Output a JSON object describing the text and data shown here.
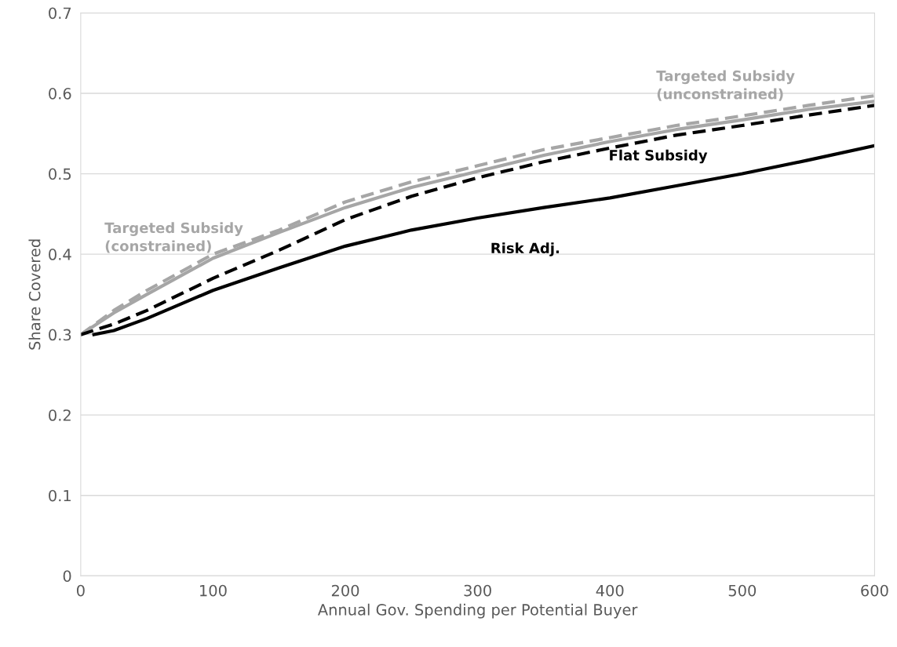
{
  "chart_data": {
    "type": "line",
    "xlabel": "Annual Gov. Spending per Potential Buyer",
    "ylabel": "Share Covered",
    "xlim": [
      0,
      600
    ],
    "xticks": [
      0,
      100,
      200,
      300,
      400,
      500,
      600
    ],
    "ylim": [
      0,
      0.7
    ],
    "yticks": [
      0,
      0.1,
      0.2,
      0.3,
      0.4,
      0.5,
      0.6,
      0.7
    ],
    "grid": "y",
    "legend": false,
    "marker": "none",
    "series": [
      {
        "name": "Targeted Subsidy\n(unconstrained)",
        "color": "#a6a6a6",
        "line_style": "dashed",
        "x": [
          0,
          25,
          50,
          100,
          150,
          200,
          250,
          300,
          350,
          400,
          450,
          500,
          550,
          600
        ],
        "values": [
          0.3,
          0.33,
          0.355,
          0.4,
          0.43,
          0.465,
          0.49,
          0.51,
          0.53,
          0.545,
          0.56,
          0.572,
          0.585,
          0.597
        ]
      },
      {
        "name": "Targeted Subsidy\n(constrained)",
        "color": "#a6a6a6",
        "line_style": "solid",
        "x": [
          0,
          25,
          50,
          100,
          150,
          200,
          250,
          300,
          350,
          400,
          450,
          500,
          550,
          600
        ],
        "values": [
          0.3,
          0.327,
          0.35,
          0.395,
          0.427,
          0.458,
          0.483,
          0.503,
          0.523,
          0.54,
          0.555,
          0.567,
          0.58,
          0.59
        ]
      },
      {
        "name": "Flat Subsidy",
        "color": "#000000",
        "line_style": "dashed",
        "x": [
          0,
          25,
          50,
          100,
          150,
          200,
          250,
          300,
          350,
          400,
          450,
          500,
          550,
          600
        ],
        "values": [
          0.3,
          0.313,
          0.33,
          0.37,
          0.405,
          0.443,
          0.472,
          0.495,
          0.515,
          0.532,
          0.548,
          0.56,
          0.573,
          0.585
        ]
      },
      {
        "name": "Risk Adj.",
        "color": "#000000",
        "line_style": "solid",
        "x": [
          10,
          25,
          50,
          100,
          150,
          200,
          250,
          300,
          350,
          400,
          450,
          500,
          550,
          600
        ],
        "values": [
          0.3,
          0.305,
          0.32,
          0.355,
          0.383,
          0.41,
          0.43,
          0.445,
          0.458,
          0.47,
          0.485,
          0.5,
          0.517,
          0.535
        ]
      }
    ]
  }
}
